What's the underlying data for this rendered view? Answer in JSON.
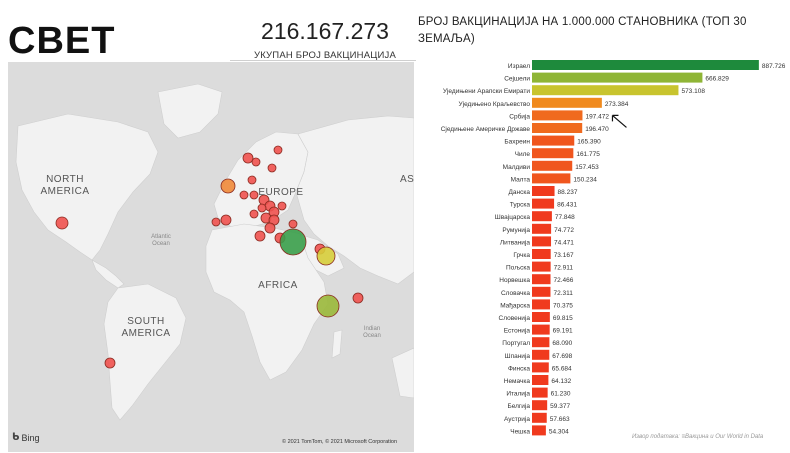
{
  "header": {
    "title": "СВЕТ",
    "total_value": "216.167.273",
    "total_label": "УКУПАН БРОЈ ВАКЦИНАЦИЈА"
  },
  "map": {
    "labels": {
      "north_america": "NORTH AMERICA",
      "europe": "EUROPE",
      "africa": "AFRICA",
      "south_america": "SOUTH AMERICA",
      "atlantic": "Atlantic Ocean",
      "indian": "Indian Ocean",
      "asia_partial": "AS"
    },
    "attribution": "Bing",
    "copyright": "© 2021 TomTom, © 2021 Microsoft Corporation",
    "icon": "bing-logo-icon",
    "bubble_colors": {
      "red": "#f0524f",
      "orange": "#f08a3a",
      "green": "#3a9e4a",
      "olive": "#9ab83a",
      "yellow": "#d6cd3a"
    }
  },
  "chart_data": {
    "type": "bar",
    "orientation": "horizontal",
    "title": "БРОЈ ВАКЦИНАЦИЈА НА 1.000.000 СТАНОВНИКА (ТОП 30 ЗЕМАЉА)",
    "categories": [
      "Израел",
      "Сејшели",
      "Уједињени Арапски Емирати",
      "Уједињено Краљевство",
      "Србија",
      "Сједињене Америчке Државе",
      "Бахреин",
      "Чиле",
      "Малдиви",
      "Малта",
      "Данска",
      "Турска",
      "Швајцарска",
      "Румунија",
      "Литванија",
      "Грчка",
      "Пољска",
      "Норвешка",
      "Словачка",
      "Мађарска",
      "Словенија",
      "Естонија",
      "Португал",
      "Шпанија",
      "Финска",
      "Немачка",
      "Италија",
      "Белгија",
      "Аустрија",
      "Чешка"
    ],
    "values": [
      887726,
      666829,
      573108,
      273384,
      197472,
      196470,
      165390,
      161775,
      157453,
      150234,
      88237,
      86431,
      77848,
      74772,
      74471,
      73167,
      72911,
      72466,
      72311,
      70375,
      69815,
      69191,
      68090,
      67698,
      65684,
      64132,
      61230,
      59377,
      57663,
      54304
    ],
    "value_labels": [
      "887.726",
      "666.829",
      "573.108",
      "273.384",
      "197.472",
      "196.470",
      "165.390",
      "161.775",
      "157.453",
      "150.234",
      "88.237",
      "86.431",
      "77.848",
      "74.772",
      "74.471",
      "73.167",
      "72.911",
      "72.466",
      "72.311",
      "70.375",
      "69.815",
      "69.191",
      "68.090",
      "67.698",
      "65.684",
      "64.132",
      "61.230",
      "59.377",
      "57.663",
      "54.304"
    ],
    "colors": [
      "#1e8a3c",
      "#8fb536",
      "#c8c42e",
      "#f08a1e",
      "#f06a1e",
      "#f06a1e",
      "#f0561e",
      "#f0561e",
      "#f0561e",
      "#f0561e",
      "#f03a1e",
      "#f03a1e",
      "#f03a1e",
      "#f03a1e",
      "#f03a1e",
      "#f03a1e",
      "#f03a1e",
      "#f03a1e",
      "#f03a1e",
      "#f03a1e",
      "#f03a1e",
      "#f03a1e",
      "#f03a1e",
      "#f03a1e",
      "#f03a1e",
      "#f03a1e",
      "#f03a1e",
      "#f03a1e",
      "#f03a1e",
      "#f03a1e"
    ],
    "xlim": [
      0,
      900000
    ],
    "grid": false,
    "legend": "none",
    "annotation": "arrow pointing at Србија"
  },
  "source_note": "Извор података: ≡Вакцина и Our World in Data"
}
